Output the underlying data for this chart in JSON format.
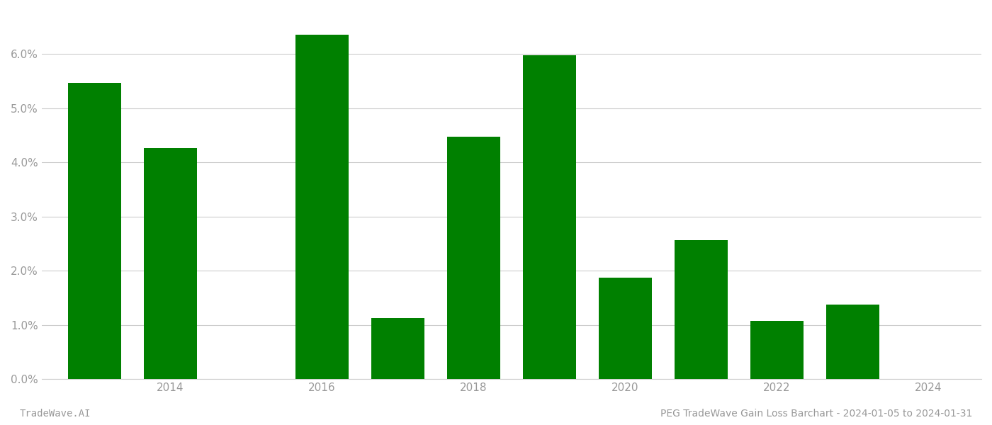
{
  "years": [
    2013,
    2014,
    2016,
    2017,
    2018,
    2019,
    2020,
    2021,
    2022,
    2023
  ],
  "values": [
    0.0547,
    0.0427,
    0.0635,
    0.0113,
    0.0447,
    0.0597,
    0.0187,
    0.0257,
    0.0107,
    0.0137
  ],
  "bar_color": "#008000",
  "background_color": "#ffffff",
  "yticks": [
    0.0,
    0.01,
    0.02,
    0.03,
    0.04,
    0.05,
    0.06
  ],
  "ytick_labels": [
    "0.0%",
    "1.0%",
    "2.0%",
    "3.0%",
    "4.0%",
    "5.0%",
    "6.0%"
  ],
  "ylim": [
    0.0,
    0.068
  ],
  "xlim": [
    2012.3,
    2024.7
  ],
  "xticks": [
    2014,
    2016,
    2018,
    2020,
    2022,
    2024
  ],
  "tick_fontsize": 11,
  "tick_color": "#999999",
  "grid_color": "#cccccc",
  "footer_left": "TradeWave.AI",
  "footer_right": "PEG TradeWave Gain Loss Barchart - 2024-01-05 to 2024-01-31",
  "footer_fontsize": 10,
  "bar_width": 0.7
}
